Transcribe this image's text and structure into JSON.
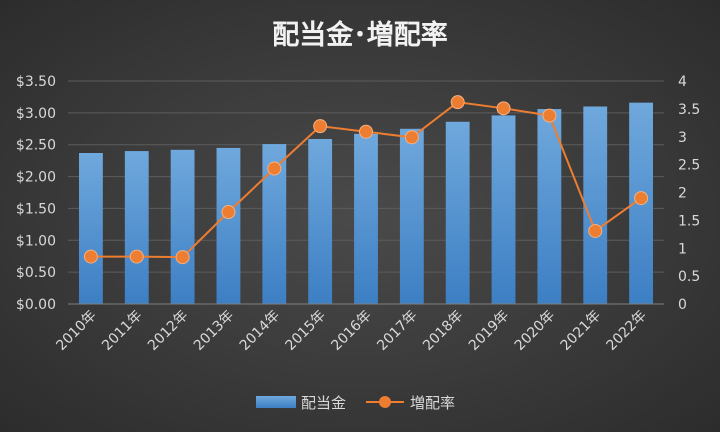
{
  "chart_data": {
    "type": "bar+line",
    "title": "配当金･増配率",
    "categories": [
      "2010年",
      "2011年",
      "2012年",
      "2013年",
      "2014年",
      "2015年",
      "2016年",
      "2017年",
      "2018年",
      "2019年",
      "2020年",
      "2021年",
      "2022年"
    ],
    "series": [
      {
        "name": "配当金",
        "type": "bar",
        "axis": "left",
        "color": "#5b9bd5",
        "values": [
          2.37,
          2.4,
          2.42,
          2.45,
          2.51,
          2.59,
          2.67,
          2.75,
          2.86,
          2.96,
          3.06,
          3.1,
          3.16
        ]
      },
      {
        "name": "増配率",
        "type": "line",
        "axis": "right",
        "color": "#ed7d31",
        "values": [
          0.85,
          0.85,
          0.84,
          1.65,
          2.43,
          3.19,
          3.09,
          2.99,
          3.62,
          3.51,
          3.38,
          1.31,
          1.9
        ]
      }
    ],
    "y_left": {
      "min": 0,
      "max": 3.5,
      "ticks": [
        "$0.00",
        "$0.50",
        "$1.00",
        "$1.50",
        "$2.00",
        "$2.50",
        "$3.00",
        "$3.50"
      ]
    },
    "y_right": {
      "min": 0,
      "max": 4,
      "ticks": [
        "0",
        "0.5",
        "1",
        "1.5",
        "2",
        "2.5",
        "3",
        "3.5",
        "4"
      ]
    },
    "grid": true,
    "legend": "bottom"
  }
}
